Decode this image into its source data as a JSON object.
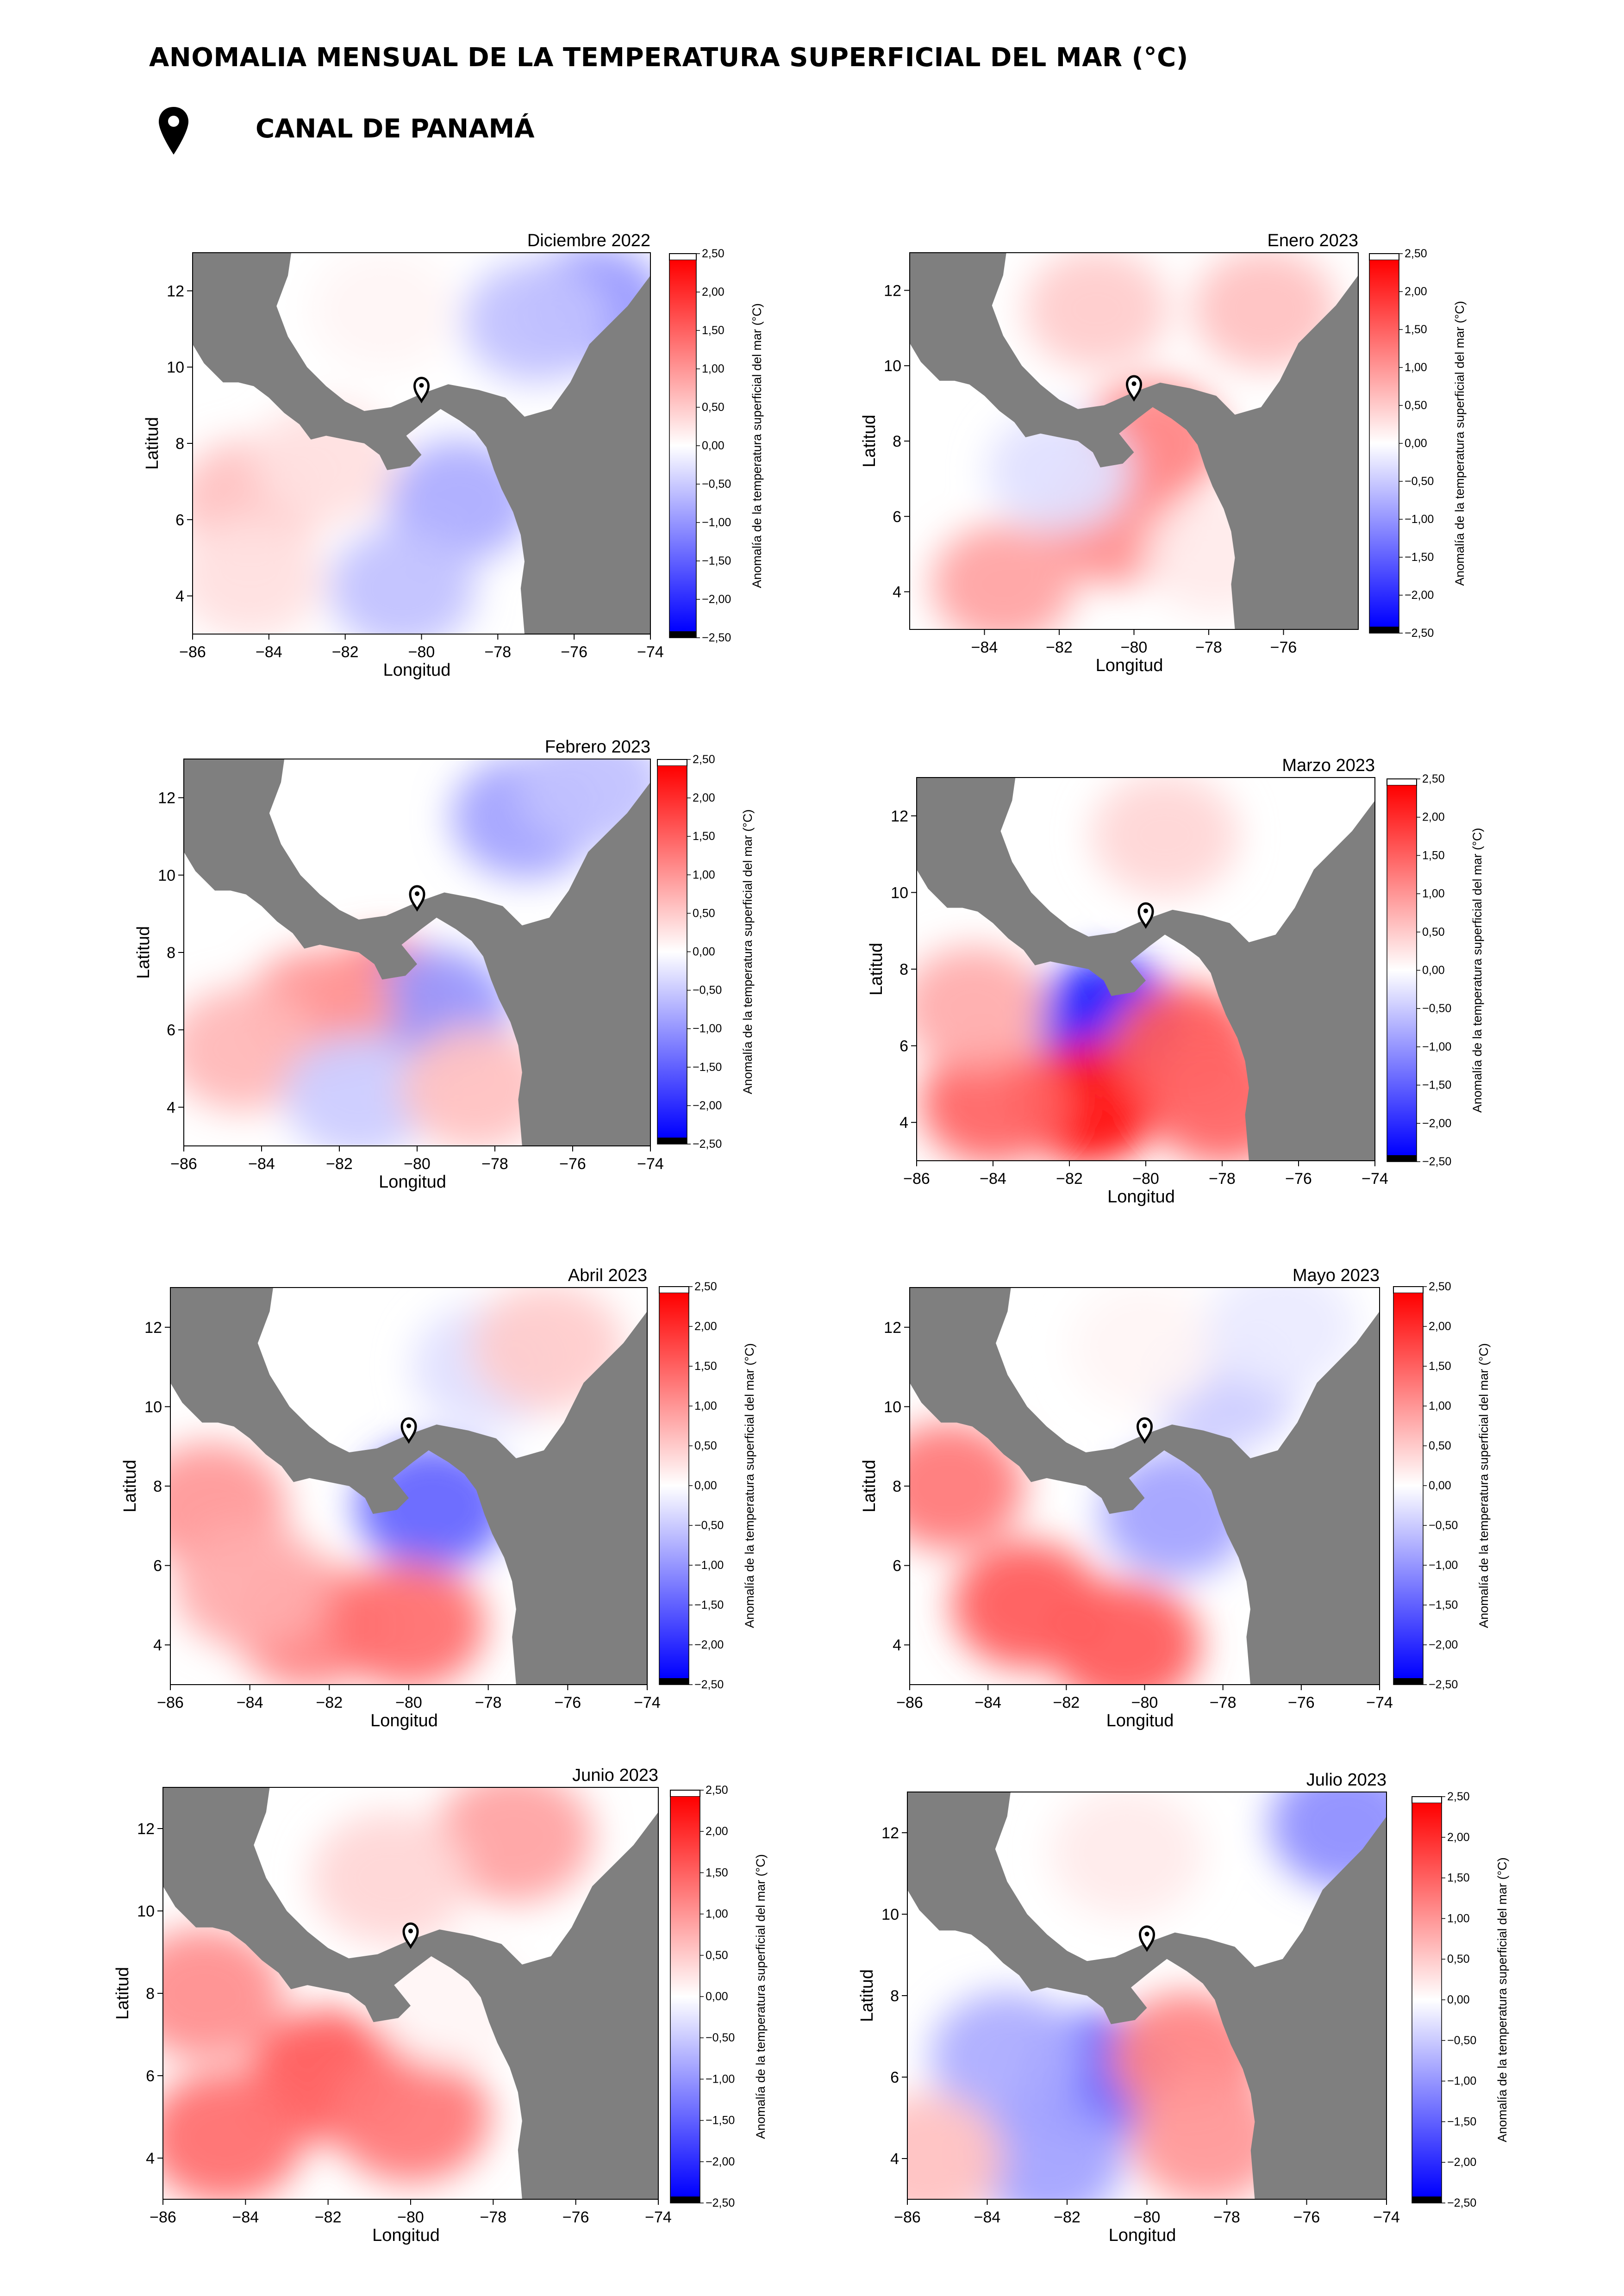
{
  "header": {
    "title": "ANOMALIA MENSUAL DE LA TEMPERATURA SUPERFICIAL DEL MAR (°C)",
    "location": "CANAL DE PANAMÁ",
    "location_icon": "map-pin-icon"
  },
  "colors": {
    "land": "#7f7f7f",
    "positive": "#ff0000",
    "negative": "#0000ff",
    "neutral": "#ffffff"
  },
  "chart_data": [
    {
      "type": "heatmap",
      "title": "Diciembre 2022",
      "xlabel": "Longitud",
      "ylabel": "Latitud",
      "x_ticks": [
        "−86",
        "−84",
        "−82",
        "−80",
        "−78",
        "−76",
        "−74"
      ],
      "y_ticks": [
        "4",
        "6",
        "8",
        "10",
        "12"
      ],
      "xlim": [
        -86,
        -74
      ],
      "ylim": [
        3,
        13
      ],
      "colorbar": {
        "label": "Anomalía de la temperatura superficial del mar (°C)",
        "range": [
          -2.5,
          2.5
        ],
        "ticks": [
          "2,50",
          "2,00",
          "1,50",
          "1,00",
          "0,50",
          "0,00",
          "−0,50",
          "−1,00",
          "−1,50",
          "−2,00",
          "−2,50"
        ]
      },
      "marker": {
        "lon": -80.0,
        "lat": 9.4,
        "name": "Canal de Panamá"
      },
      "anomaly_regions": [
        {
          "lon": -75.5,
          "lat": 11.6,
          "value": -1.0
        },
        {
          "lon": -77.0,
          "lat": 11.2,
          "value": -0.6
        },
        {
          "lon": -81.0,
          "lat": 11.5,
          "value": 0.1
        },
        {
          "lon": -79.0,
          "lat": 6.5,
          "value": -0.8
        },
        {
          "lon": -80.5,
          "lat": 4.2,
          "value": -0.6
        },
        {
          "lon": -84.5,
          "lat": 6.5,
          "value": 0.6
        },
        {
          "lon": -84.5,
          "lat": 4.5,
          "value": 0.3
        },
        {
          "lon": -82.5,
          "lat": 7.5,
          "value": 0.3
        }
      ]
    },
    {
      "type": "heatmap",
      "title": "Enero 2023",
      "xlabel": "Longitud",
      "ylabel": "Latitud",
      "x_ticks": [
        "−84",
        "−82",
        "−80",
        "−78",
        "−76"
      ],
      "y_ticks": [
        "4",
        "6",
        "8",
        "10",
        "12"
      ],
      "xlim": [
        -86,
        -74
      ],
      "ylim": [
        3,
        13
      ],
      "colorbar": {
        "label": "Anomalía de la temperatura superficial del mar (°C)",
        "range": [
          -2.5,
          2.5
        ],
        "ticks": [
          "2,50",
          "2,00",
          "1,50",
          "1,00",
          "0,50",
          "0,00",
          "−0,50",
          "−1,00",
          "−1,50",
          "−2,00",
          "−2,50"
        ]
      },
      "marker": {
        "lon": -80.0,
        "lat": 9.4,
        "name": "Canal de Panamá"
      },
      "anomaly_regions": [
        {
          "lon": -79.5,
          "lat": 8.0,
          "value": 1.2
        },
        {
          "lon": -80.5,
          "lat": 5.8,
          "value": 1.1
        },
        {
          "lon": -83.5,
          "lat": 4.2,
          "value": 0.9
        },
        {
          "lon": -81.0,
          "lat": 11.5,
          "value": 0.5
        },
        {
          "lon": -76.5,
          "lat": 11.5,
          "value": 0.6
        },
        {
          "lon": -82.0,
          "lat": 7.2,
          "value": -0.3
        },
        {
          "lon": -77.8,
          "lat": 5.0,
          "value": 0.2
        }
      ]
    },
    {
      "type": "heatmap",
      "title": "Febrero 2023",
      "xlabel": "Longitud",
      "ylabel": "Latitud",
      "x_ticks": [
        "−86",
        "−84",
        "−82",
        "−80",
        "−78",
        "−76",
        "−74"
      ],
      "y_ticks": [
        "4",
        "6",
        "8",
        "10",
        "12"
      ],
      "xlim": [
        -86,
        -74
      ],
      "ylim": [
        3,
        13
      ],
      "colorbar": {
        "label": "Anomalía de la temperatura superficial del mar (°C)",
        "range": [
          -2.5,
          2.5
        ],
        "ticks": [
          "2,50",
          "2,00",
          "1,50",
          "1,00",
          "0,50",
          "0,00",
          "−0,50",
          "−1,00",
          "−1,50",
          "−2,00",
          "−2,50"
        ]
      },
      "marker": {
        "lon": -80.0,
        "lat": 9.4,
        "name": "Canal de Panamá"
      },
      "anomaly_regions": [
        {
          "lon": -77.2,
          "lat": 11.5,
          "value": -0.9
        },
        {
          "lon": -75.5,
          "lat": 12.3,
          "value": -0.6
        },
        {
          "lon": -80.8,
          "lat": 6.8,
          "value": 1.4
        },
        {
          "lon": -79.5,
          "lat": 6.5,
          "value": -1.0
        },
        {
          "lon": -82.5,
          "lat": 6.5,
          "value": 1.0
        },
        {
          "lon": -84.5,
          "lat": 5.5,
          "value": 0.7
        },
        {
          "lon": -81.5,
          "lat": 4.3,
          "value": -0.5
        },
        {
          "lon": -78.5,
          "lat": 4.5,
          "value": 0.6
        }
      ]
    },
    {
      "type": "heatmap",
      "title": "Marzo 2023",
      "xlabel": "Longitud",
      "ylabel": "Latitud",
      "x_ticks": [
        "−86",
        "−84",
        "−82",
        "−80",
        "−78",
        "−76",
        "−74"
      ],
      "y_ticks": [
        "4",
        "6",
        "8",
        "10",
        "12"
      ],
      "xlim": [
        -86,
        -74
      ],
      "ylim": [
        3,
        13
      ],
      "colorbar": {
        "label": "Anomalía de la temperatura superficial del mar (°C)",
        "range": [
          -2.5,
          2.5
        ],
        "ticks": [
          "2,50",
          "2,00",
          "1,50",
          "1,00",
          "0,50",
          "0,00",
          "−0,50",
          "−1,00",
          "−1,50",
          "−2,00",
          "−2,50"
        ]
      },
      "marker": {
        "lon": -80.0,
        "lat": 9.4,
        "name": "Canal de Panamá"
      },
      "anomaly_regions": [
        {
          "lon": -81.0,
          "lat": 6.7,
          "value": -2.2
        },
        {
          "lon": -81.5,
          "lat": 4.5,
          "value": 2.4
        },
        {
          "lon": -79.0,
          "lat": 6.0,
          "value": 1.6
        },
        {
          "lon": -84.0,
          "lat": 4.5,
          "value": 1.5
        },
        {
          "lon": -84.5,
          "lat": 7.0,
          "value": 0.8
        },
        {
          "lon": -78.0,
          "lat": 4.5,
          "value": 1.5
        },
        {
          "lon": -79.5,
          "lat": 11.5,
          "value": 0.4
        }
      ]
    },
    {
      "type": "heatmap",
      "title": "Abril 2023",
      "xlabel": "Longitud",
      "ylabel": "Latitud",
      "x_ticks": [
        "−86",
        "−84",
        "−82",
        "−80",
        "−78",
        "−76",
        "−74"
      ],
      "y_ticks": [
        "4",
        "6",
        "8",
        "10",
        "12"
      ],
      "xlim": [
        -86,
        -74
      ],
      "ylim": [
        3,
        13
      ],
      "colorbar": {
        "label": "Anomalía de la temperatura superficial del mar (°C)",
        "range": [
          -2.5,
          2.5
        ],
        "ticks": [
          "2,50",
          "2,00",
          "1,50",
          "1,00",
          "0,50",
          "0,00",
          "−0,50",
          "−1,00",
          "−1,50",
          "−2,00",
          "−2,50"
        ]
      },
      "marker": {
        "lon": -80.0,
        "lat": 9.4,
        "name": "Canal de Panamá"
      },
      "anomaly_regions": [
        {
          "lon": -79.4,
          "lat": 7.5,
          "value": -1.5
        },
        {
          "lon": -82.5,
          "lat": 4.5,
          "value": 1.2
        },
        {
          "lon": -85.0,
          "lat": 7.5,
          "value": 1.0
        },
        {
          "lon": -80.0,
          "lat": 4.5,
          "value": 1.4
        },
        {
          "lon": -84.0,
          "lat": 5.5,
          "value": 0.8
        },
        {
          "lon": -78.0,
          "lat": 11.0,
          "value": -0.3
        },
        {
          "lon": -76.5,
          "lat": 11.5,
          "value": 0.5
        }
      ]
    },
    {
      "type": "heatmap",
      "title": "Mayo 2023",
      "xlabel": "Longitud",
      "ylabel": "Latitud",
      "x_ticks": [
        "−86",
        "−84",
        "−82",
        "−80",
        "−78",
        "−76",
        "−74"
      ],
      "y_ticks": [
        "4",
        "6",
        "8",
        "10",
        "12"
      ],
      "xlim": [
        -86,
        -74
      ],
      "ylim": [
        3,
        13
      ],
      "colorbar": {
        "label": "Anomalía de la temperatura superficial del mar (°C)",
        "range": [
          -2.5,
          2.5
        ],
        "ticks": [
          "2,50",
          "2,00",
          "1,50",
          "1,00",
          "0,50",
          "0,00",
          "−0,50",
          "−1,00",
          "−1,50",
          "−2,00",
          "−2,50"
        ]
      },
      "marker": {
        "lon": -80.0,
        "lat": 9.4,
        "name": "Canal de Panamá"
      },
      "anomaly_regions": [
        {
          "lon": -79.2,
          "lat": 7.3,
          "value": -0.9
        },
        {
          "lon": -83.0,
          "lat": 5.0,
          "value": 1.6
        },
        {
          "lon": -85.0,
          "lat": 8.0,
          "value": 1.3
        },
        {
          "lon": -80.5,
          "lat": 4.0,
          "value": 1.6
        },
        {
          "lon": -78.0,
          "lat": 10.5,
          "value": -0.5
        },
        {
          "lon": -80.0,
          "lat": 11.5,
          "value": 0.1
        },
        {
          "lon": -76.5,
          "lat": 12.0,
          "value": -0.2
        }
      ]
    },
    {
      "type": "heatmap",
      "title": "Junio 2023",
      "xlabel": "Longitud",
      "ylabel": "Latitud",
      "x_ticks": [
        "−86",
        "−84",
        "−82",
        "−80",
        "−78",
        "−76",
        "−74"
      ],
      "y_ticks": [
        "4",
        "6",
        "8",
        "10",
        "12"
      ],
      "xlim": [
        -86,
        -74
      ],
      "ylim": [
        3,
        13
      ],
      "colorbar": {
        "label": "Anomalía de la temperatura superficial del mar (°C)",
        "range": [
          -2.5,
          2.5
        ],
        "ticks": [
          "2,50",
          "2,00",
          "1,50",
          "1,00",
          "0,50",
          "0,00",
          "−0,50",
          "−1,00",
          "−1,50",
          "−2,00",
          "−2,50"
        ]
      },
      "marker": {
        "lon": -80.0,
        "lat": 9.4,
        "name": "Canal de Panamá"
      },
      "anomaly_regions": [
        {
          "lon": -82.0,
          "lat": 6.0,
          "value": 1.6
        },
        {
          "lon": -84.5,
          "lat": 4.5,
          "value": 1.4
        },
        {
          "lon": -80.0,
          "lat": 5.0,
          "value": 1.3
        },
        {
          "lon": -85.0,
          "lat": 8.0,
          "value": 1.1
        },
        {
          "lon": -77.5,
          "lat": 11.8,
          "value": 0.9
        },
        {
          "lon": -80.5,
          "lat": 10.8,
          "value": 0.4
        },
        {
          "lon": -79.0,
          "lat": 7.8,
          "value": 0.1
        }
      ]
    },
    {
      "type": "heatmap",
      "title": "Julio 2023",
      "xlabel": "Longitud",
      "ylabel": "Latitud",
      "x_ticks": [
        "−86",
        "−84",
        "−82",
        "−80",
        "−78",
        "−76",
        "−74"
      ],
      "y_ticks": [
        "4",
        "6",
        "8",
        "10",
        "12"
      ],
      "xlim": [
        -86,
        -74
      ],
      "ylim": [
        3,
        13
      ],
      "colorbar": {
        "label": "Anomalía de la temperatura superficial del mar (°C)",
        "range": [
          -2.5,
          2.5
        ],
        "ticks": [
          "2,50",
          "2,00",
          "1,50",
          "1,00",
          "0,50",
          "0,00",
          "−0,50",
          "−1,00",
          "−1,50",
          "−2,00",
          "−2,50"
        ]
      },
      "marker": {
        "lon": -80.0,
        "lat": 9.4,
        "name": "Canal de Panamá"
      },
      "anomaly_regions": [
        {
          "lon": -81.3,
          "lat": 6.0,
          "value": -1.6
        },
        {
          "lon": -83.5,
          "lat": 6.5,
          "value": -0.8
        },
        {
          "lon": -82.5,
          "lat": 4.0,
          "value": -0.9
        },
        {
          "lon": -79.0,
          "lat": 6.5,
          "value": 1.2
        },
        {
          "lon": -78.5,
          "lat": 4.5,
          "value": 1.0
        },
        {
          "lon": -75.0,
          "lat": 12.2,
          "value": -1.1
        },
        {
          "lon": -85.5,
          "lat": 4.0,
          "value": 0.6
        },
        {
          "lon": -80.5,
          "lat": 11.5,
          "value": 0.2
        }
      ]
    }
  ]
}
